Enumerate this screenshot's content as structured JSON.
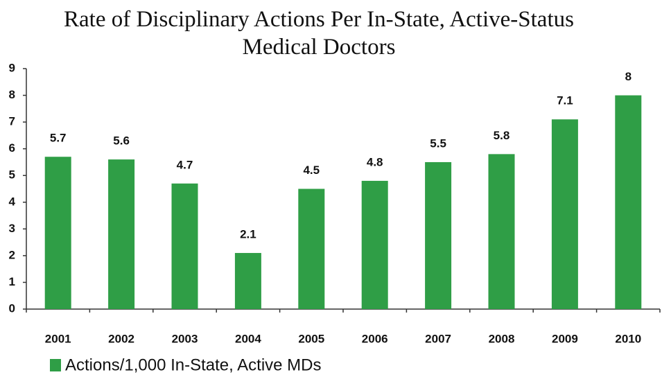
{
  "chart_data": {
    "type": "bar",
    "title": "Rate of Disciplinary Actions Per In-State, Active-Status Medical Doctors",
    "categories": [
      "2001",
      "2002",
      "2003",
      "2004",
      "2005",
      "2006",
      "2007",
      "2008",
      "2009",
      "2010"
    ],
    "series": [
      {
        "name": "Actions/1,000 In-State, Active MDs",
        "color": "#2f9e46",
        "values": [
          5.7,
          5.6,
          4.7,
          2.1,
          4.5,
          4.8,
          5.5,
          5.8,
          7.1,
          8
        ]
      }
    ],
    "ylim": [
      0,
      9
    ],
    "yticks": [
      0,
      1,
      2,
      3,
      4,
      5,
      6,
      7,
      8,
      9
    ],
    "grid": false,
    "legend": "bottom-left"
  }
}
